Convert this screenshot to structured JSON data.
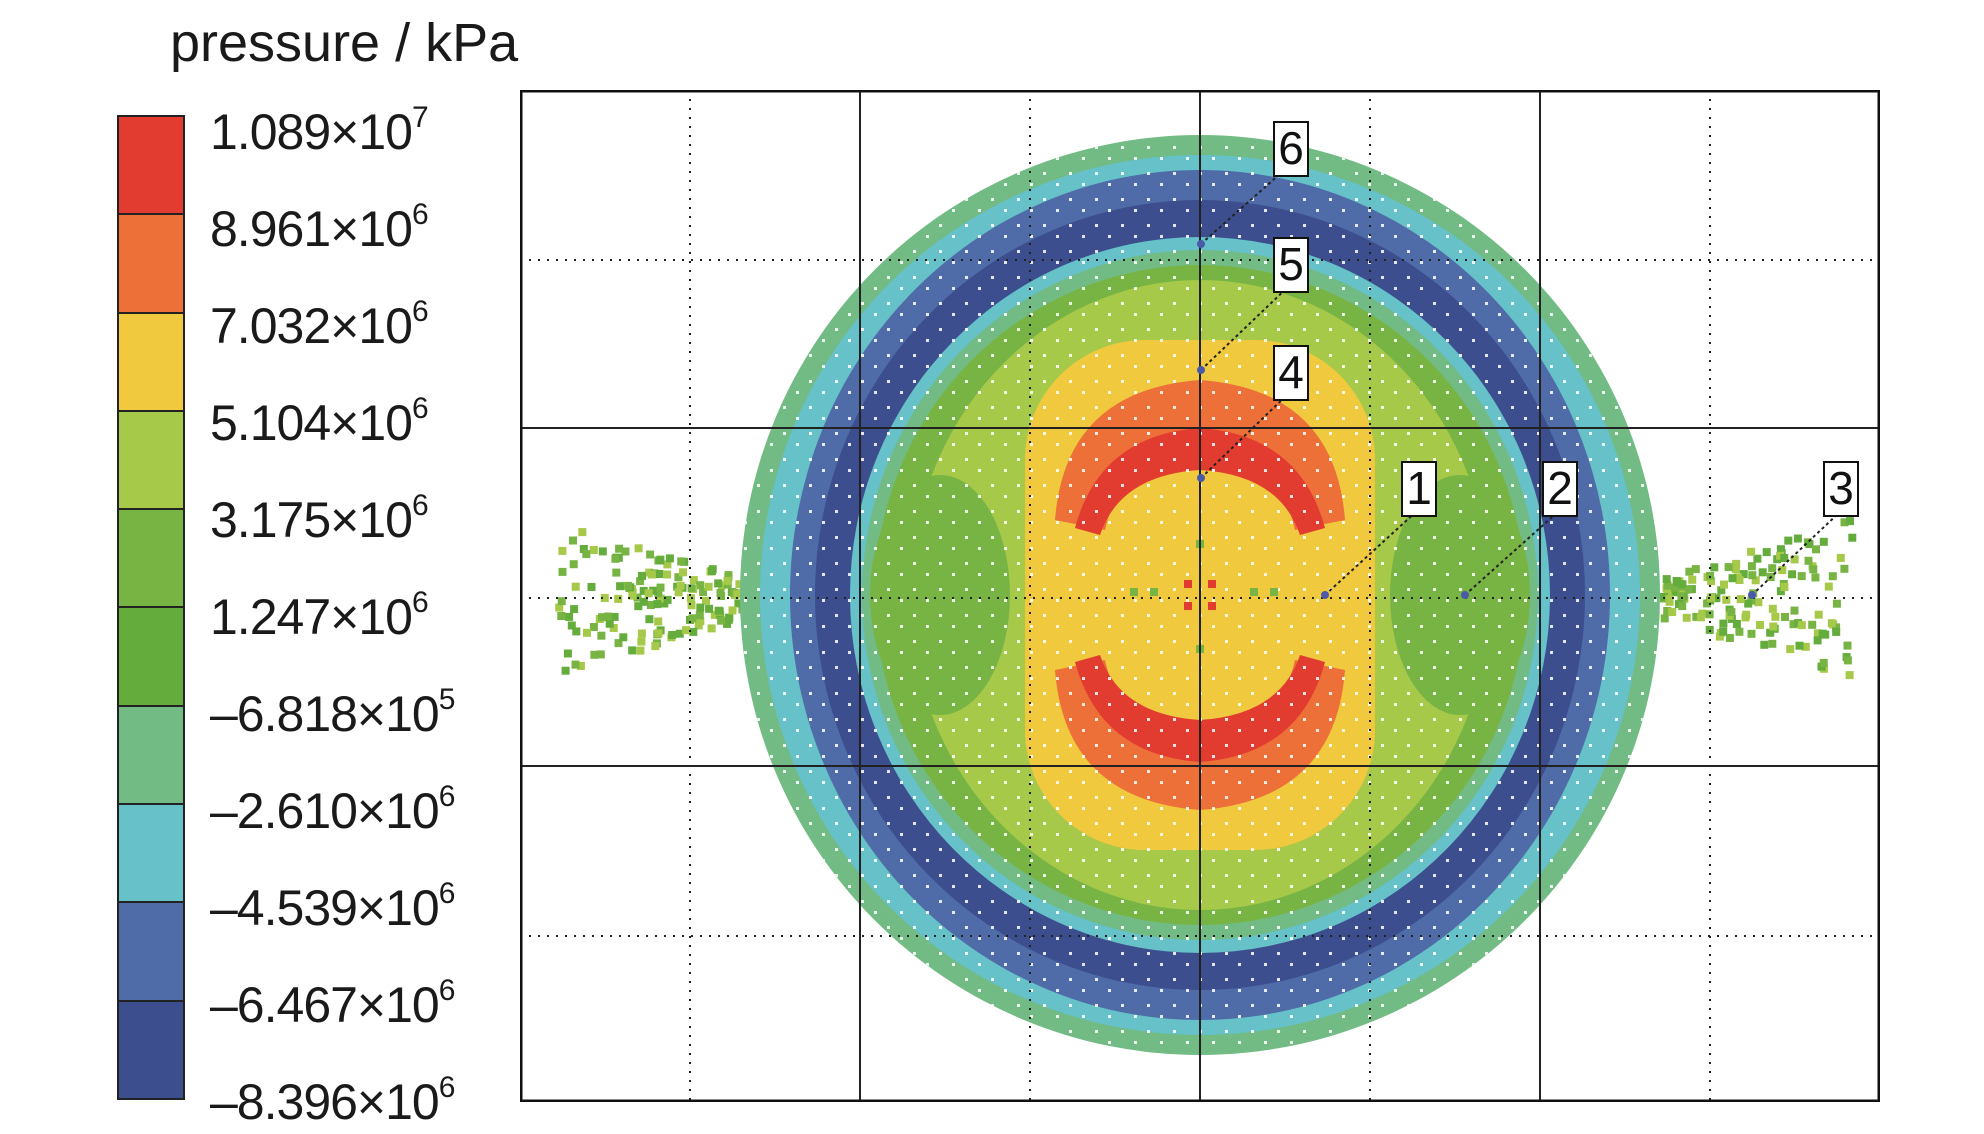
{
  "legend": {
    "title": "pressure / kPa",
    "levels": [
      {
        "mantissa": "1.089×10",
        "exp": "7"
      },
      {
        "mantissa": "8.961×10",
        "exp": "6"
      },
      {
        "mantissa": "7.032×10",
        "exp": "6"
      },
      {
        "mantissa": "5.104×10",
        "exp": "6"
      },
      {
        "mantissa": "3.175×10",
        "exp": "6"
      },
      {
        "mantissa": "1.247×10",
        "exp": "6"
      },
      {
        "mantissa": "–6.818×10",
        "exp": "5"
      },
      {
        "mantissa": "–2.610×10",
        "exp": "6"
      },
      {
        "mantissa": "–4.539×10",
        "exp": "6"
      },
      {
        "mantissa": "–6.467×10",
        "exp": "6"
      },
      {
        "mantissa": "–8.396×10",
        "exp": "6"
      }
    ],
    "band_colors": [
      "#e23b30",
      "#ec7037",
      "#f0c93e",
      "#a7c94a",
      "#78b444",
      "#64ac3c",
      "#72bb84",
      "#66c1c8",
      "#4f6ca8",
      "#3d4e8e"
    ]
  },
  "gauges": [
    "1",
    "2",
    "3",
    "4",
    "5",
    "6"
  ]
}
